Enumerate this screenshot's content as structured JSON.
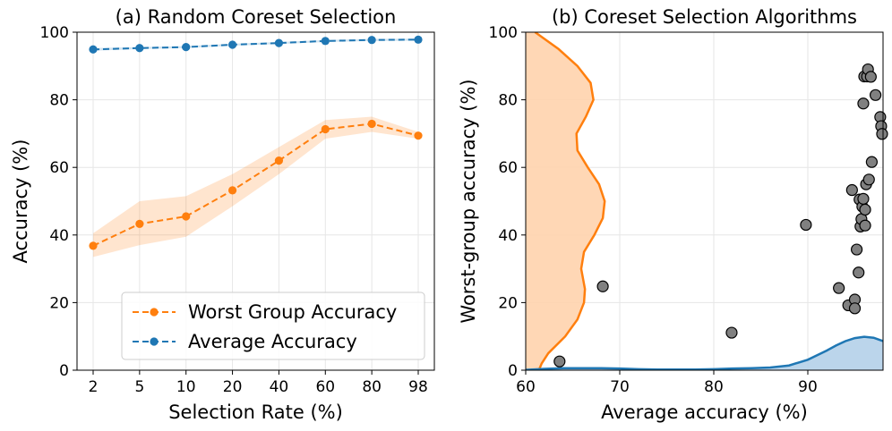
{
  "colors": {
    "orange": "#ff7f0e",
    "blue": "#1f77b4",
    "orange_fill": "#ffd3ad",
    "blue_fill": "#b7d3ea",
    "scatter_fill": "#808080"
  },
  "chart_data": [
    {
      "type": "line",
      "title": "(a) Random Coreset Selection",
      "xlabel": "Selection Rate (%)",
      "ylabel": "Accuracy (%)",
      "categories": [
        "2",
        "5",
        "10",
        "20",
        "40",
        "60",
        "80",
        "98"
      ],
      "ylim": [
        0,
        100
      ],
      "yticks": [
        0,
        20,
        40,
        60,
        80,
        100
      ],
      "grid": true,
      "legend_position": "lower-right",
      "series": [
        {
          "name": "Worst Group Accuracy",
          "color": "orange",
          "values": [
            36.8,
            43.3,
            45.5,
            53.2,
            62.0,
            71.3,
            72.9,
            69.4
          ],
          "band_lower": [
            33.5,
            37.0,
            39.5,
            48.5,
            58.0,
            68.5,
            70.5,
            68.5
          ],
          "band_upper": [
            40.5,
            50.0,
            51.5,
            58.0,
            66.0,
            74.0,
            75.0,
            70.5
          ]
        },
        {
          "name": "Average Accuracy",
          "color": "blue",
          "values": [
            94.9,
            95.3,
            95.6,
            96.3,
            96.8,
            97.4,
            97.7,
            97.8
          ],
          "band_lower": [
            94.5,
            95.0,
            95.3,
            96.0,
            96.5,
            97.1,
            97.4,
            97.5
          ],
          "band_upper": [
            95.3,
            95.6,
            95.9,
            96.6,
            97.1,
            97.7,
            98.0,
            98.1
          ]
        }
      ]
    },
    {
      "type": "scatter",
      "title": "(b) Coreset Selection Algorithms",
      "xlabel": "Average accuracy (%)",
      "ylabel": "Worst-group accuracy (%)",
      "xlim": [
        60,
        98
      ],
      "ylim": [
        0,
        100
      ],
      "xticks": [
        60,
        70,
        80,
        90
      ],
      "yticks": [
        0,
        20,
        40,
        60,
        80,
        100
      ],
      "grid": true,
      "points": [
        {
          "x": 63.6,
          "y": 2.6
        },
        {
          "x": 68.2,
          "y": 24.8
        },
        {
          "x": 81.9,
          "y": 11.1
        },
        {
          "x": 89.8,
          "y": 43.0
        },
        {
          "x": 93.3,
          "y": 24.3
        },
        {
          "x": 94.3,
          "y": 19.2
        },
        {
          "x": 94.7,
          "y": 53.3
        },
        {
          "x": 95.0,
          "y": 20.9
        },
        {
          "x": 95.0,
          "y": 18.3
        },
        {
          "x": 95.2,
          "y": 35.7
        },
        {
          "x": 95.4,
          "y": 28.9
        },
        {
          "x": 95.5,
          "y": 50.5
        },
        {
          "x": 95.6,
          "y": 42.5
        },
        {
          "x": 95.7,
          "y": 44.7
        },
        {
          "x": 95.8,
          "y": 48.4
        },
        {
          "x": 95.9,
          "y": 50.7
        },
        {
          "x": 95.9,
          "y": 78.9
        },
        {
          "x": 96.0,
          "y": 86.9
        },
        {
          "x": 96.1,
          "y": 42.8
        },
        {
          "x": 96.1,
          "y": 47.5
        },
        {
          "x": 96.2,
          "y": 55.0
        },
        {
          "x": 96.3,
          "y": 86.9
        },
        {
          "x": 96.4,
          "y": 89.0
        },
        {
          "x": 96.5,
          "y": 56.4
        },
        {
          "x": 96.7,
          "y": 86.8
        },
        {
          "x": 96.8,
          "y": 61.6
        },
        {
          "x": 97.2,
          "y": 81.4
        },
        {
          "x": 97.7,
          "y": 74.9
        },
        {
          "x": 97.8,
          "y": 72.2
        },
        {
          "x": 97.9,
          "y": 69.9
        }
      ],
      "kde_worst_group": {
        "color": "orange",
        "orientation": "vertical",
        "y": [
          0,
          2,
          5,
          10,
          15,
          20,
          24,
          27,
          30,
          35,
          40,
          45,
          50,
          55,
          60,
          65,
          70,
          75,
          80,
          85,
          90,
          95,
          100
        ],
        "density_x": [
          61.4,
          61.7,
          62.4,
          64.2,
          65.5,
          66.2,
          66.3,
          66.1,
          65.9,
          66.2,
          67.3,
          68.2,
          68.4,
          67.8,
          66.6,
          65.5,
          65.4,
          66.4,
          67.2,
          66.9,
          65.5,
          63.5,
          61.0
        ]
      },
      "kde_average": {
        "color": "blue",
        "orientation": "horizontal",
        "x": [
          60,
          62,
          64,
          66,
          68,
          70,
          72,
          74,
          76,
          78,
          80,
          82,
          84,
          86,
          88,
          90,
          92,
          93,
          94,
          95,
          96,
          97,
          98
        ],
        "density_y": [
          0.1,
          0.4,
          0.6,
          0.6,
          0.6,
          0.5,
          0.3,
          0.2,
          0.2,
          0.2,
          0.3,
          0.5,
          0.6,
          0.8,
          1.4,
          3.1,
          5.8,
          7.3,
          8.6,
          9.5,
          9.9,
          9.6,
          8.6
        ]
      }
    }
  ]
}
